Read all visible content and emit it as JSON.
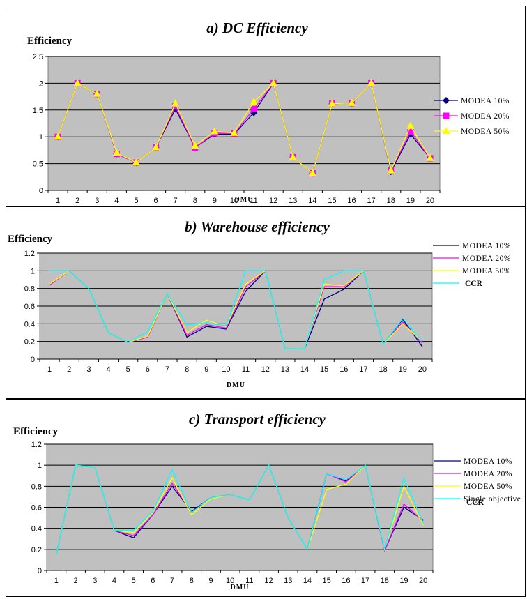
{
  "chart_data": [
    {
      "type": "line",
      "title": "a) DC Efficiency",
      "ylabel": "Efficiency",
      "xlabel": "DMU",
      "ylim": [
        0,
        2.5
      ],
      "yticks": [
        "0",
        "0.5",
        "1",
        "1.5",
        "2",
        "2.5"
      ],
      "yticks_values": [
        0,
        0.5,
        1,
        1.5,
        2,
        2.5
      ],
      "categories": [
        "1",
        "2",
        "3",
        "4",
        "5",
        "6",
        "7",
        "8",
        "9",
        "10",
        "11",
        "12",
        "13",
        "14",
        "15",
        "16",
        "17",
        "18",
        "19",
        "20"
      ],
      "plot_background": "#c0c0c0",
      "legend_position": "right",
      "series": [
        {
          "name": "MODEA 10%",
          "color": "#000080",
          "marker": "diamond",
          "values": [
            1.0,
            2.0,
            1.8,
            0.68,
            0.52,
            0.8,
            1.52,
            0.8,
            1.05,
            1.05,
            1.45,
            2.0,
            0.62,
            0.32,
            1.62,
            1.63,
            2.0,
            0.35,
            1.05,
            0.6
          ]
        },
        {
          "name": "MODEA 20%",
          "color": "#ff00ff",
          "marker": "square",
          "values": [
            1.0,
            2.0,
            1.8,
            0.68,
            0.52,
            0.8,
            1.57,
            0.8,
            1.07,
            1.06,
            1.52,
            2.0,
            0.62,
            0.32,
            1.62,
            1.63,
            2.0,
            0.37,
            1.1,
            0.6
          ]
        },
        {
          "name": "MODEA 50%",
          "color": "#ffff00",
          "marker": "triangle",
          "values": [
            1.0,
            2.0,
            1.8,
            0.7,
            0.52,
            0.8,
            1.62,
            0.83,
            1.1,
            1.07,
            1.65,
            2.0,
            0.62,
            0.32,
            1.62,
            1.63,
            2.0,
            0.37,
            1.2,
            0.6
          ]
        }
      ]
    },
    {
      "type": "line",
      "title": "b) Warehouse efficiency",
      "ylabel": "Efficiency",
      "xlabel": "DMU",
      "ylim": [
        0,
        1.2
      ],
      "yticks": [
        "0",
        "0.2",
        "0.4",
        "0.6",
        "0.8",
        "1",
        "1.2"
      ],
      "yticks_values": [
        0,
        0.2,
        0.4,
        0.6,
        0.8,
        1,
        1.2
      ],
      "categories": [
        "1",
        "2",
        "3",
        "4",
        "5",
        "6",
        "7",
        "8",
        "9",
        "10",
        "11",
        "12",
        "13",
        "14",
        "15",
        "16",
        "17",
        "18",
        "19",
        "20"
      ],
      "plot_background": "#c0c0c0",
      "legend_position": "right",
      "series": [
        {
          "name": "MODEA 10%",
          "color": "#000080",
          "values": [
            0.84,
            1.0,
            0.8,
            0.3,
            0.19,
            0.25,
            0.74,
            0.25,
            0.37,
            0.34,
            0.77,
            1.0,
            0.12,
            0.12,
            0.68,
            0.79,
            1.0,
            0.17,
            0.45,
            0.14
          ]
        },
        {
          "name": "MODEA 20%",
          "color": "#ff00ff",
          "values": [
            0.84,
            1.0,
            0.8,
            0.3,
            0.19,
            0.25,
            0.74,
            0.27,
            0.39,
            0.35,
            0.82,
            1.0,
            0.12,
            0.12,
            0.82,
            0.82,
            1.0,
            0.17,
            0.42,
            0.18
          ]
        },
        {
          "name": "MODEA 50%",
          "color": "#ffff00",
          "values": [
            0.85,
            1.0,
            0.8,
            0.3,
            0.19,
            0.26,
            0.74,
            0.3,
            0.44,
            0.37,
            0.85,
            1.0,
            0.12,
            0.12,
            0.85,
            0.83,
            1.0,
            0.17,
            0.4,
            0.2
          ]
        },
        {
          "name": "CCR",
          "color": "#00ffff",
          "values": [
            1.0,
            1.0,
            0.8,
            0.3,
            0.19,
            0.31,
            0.74,
            0.39,
            0.41,
            0.38,
            1.0,
            1.0,
            0.12,
            0.12,
            0.9,
            1.0,
            1.0,
            0.17,
            0.46,
            0.2
          ]
        }
      ]
    },
    {
      "type": "line",
      "title": "c) Transport efficiency",
      "ylabel": "Efficiency",
      "xlabel": "DMU",
      "ylim": [
        0,
        1.2
      ],
      "yticks": [
        "0",
        "0.2",
        "0.4",
        "0.6",
        "0.8",
        "1",
        "1.2"
      ],
      "yticks_values": [
        0,
        0.2,
        0.4,
        0.6,
        0.8,
        1,
        1.2
      ],
      "categories": [
        "1",
        "2",
        "3",
        "4",
        "5",
        "6",
        "7",
        "8",
        "9",
        "10",
        "11",
        "12",
        "13",
        "14",
        "15",
        "16",
        "17",
        "18",
        "19",
        "20"
      ],
      "plot_background": "#c0c0c0",
      "legend_position": "right",
      "series": [
        {
          "name": "MODEA 10%",
          "color": "#000080",
          "values": [
            0.15,
            1.0,
            0.98,
            0.38,
            0.31,
            0.53,
            0.8,
            0.56,
            0.69,
            0.72,
            0.67,
            1.0,
            0.5,
            0.2,
            0.92,
            0.85,
            1.0,
            0.19,
            0.6,
            0.48
          ]
        },
        {
          "name": "MODEA 20%",
          "color": "#ff00ff",
          "values": [
            0.15,
            1.0,
            0.98,
            0.38,
            0.33,
            0.53,
            0.83,
            0.55,
            0.69,
            0.72,
            0.67,
            1.0,
            0.5,
            0.2,
            0.92,
            0.84,
            1.0,
            0.19,
            0.63,
            0.47
          ]
        },
        {
          "name": "MODEA 50%",
          "color": "#ffff00",
          "values": [
            0.15,
            1.0,
            0.98,
            0.38,
            0.36,
            0.55,
            0.88,
            0.53,
            0.68,
            0.72,
            0.67,
            1.0,
            0.5,
            0.2,
            0.77,
            0.82,
            1.0,
            0.2,
            0.8,
            0.43
          ]
        },
        {
          "name": "Single objective",
          "color": "#00ffff",
          "values": [
            0.15,
            1.0,
            0.98,
            0.38,
            0.38,
            0.56,
            0.96,
            0.55,
            0.69,
            0.72,
            0.67,
            1.0,
            0.5,
            0.2,
            0.92,
            0.86,
            1.0,
            0.2,
            0.88,
            0.45
          ]
        }
      ],
      "legend_extra": "CCR"
    }
  ]
}
